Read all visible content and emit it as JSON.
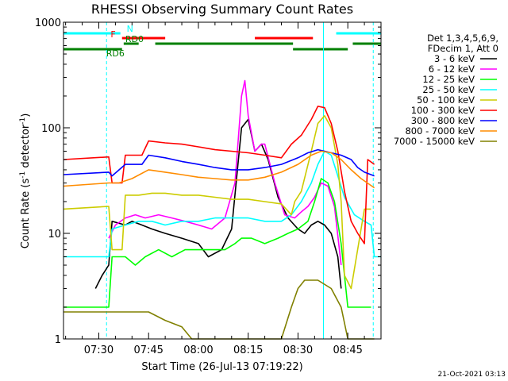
{
  "title": "RHESSI Observing Summary Count Rates",
  "footer_date": "21-Oct-2021 03:13",
  "chart_data": {
    "type": "line",
    "title": "RHESSI Observing Summary Count Rates",
    "xlabel": "Start Time (26-Jul-13 07:19:22)",
    "ylabel": "Count Rate (s^-1 detector^-1)",
    "ylabel_parts": [
      "Count Rate (s",
      "-1",
      " detector",
      "-1",
      ")"
    ],
    "xscale": "linear",
    "yscale": "log",
    "x_unit": "minutes",
    "xlim": [
      "07:19:22",
      "08:55:00"
    ],
    "ylim": [
      1,
      1000
    ],
    "xticks": [
      "07:30",
      "07:45",
      "08:00",
      "08:15",
      "08:30",
      "08:45"
    ],
    "yticks": [
      {
        "value": 1,
        "label": "1"
      },
      {
        "value": 10,
        "label": "10"
      },
      {
        "value": 100,
        "label": "100"
      },
      {
        "value": 1000,
        "label": "1000"
      }
    ],
    "grid": false,
    "legend_position": "right",
    "legend_header": [
      "Det 1,3,4,5,6,9,",
      "FDecim 1, Att 0"
    ],
    "flags": [
      {
        "label": "N",
        "color": "#00ffff",
        "segments": [
          [
            "07:19:22",
            "07:36:30"
          ],
          [
            "08:41:30",
            "08:55:00"
          ]
        ]
      },
      {
        "label": "F",
        "color": "#ff0000",
        "segments": [
          [
            "07:37:00",
            "07:50:00"
          ],
          [
            "08:17:00",
            "08:34:30"
          ]
        ]
      },
      {
        "label": "RD0",
        "color": "#008000",
        "segments": [
          [
            "07:37:30",
            "07:42:00"
          ],
          [
            "07:47:00",
            "08:28:30"
          ],
          [
            "08:46:30",
            "08:55:00"
          ]
        ]
      },
      {
        "label": "RD6",
        "color": "#008000",
        "segments": [
          [
            "07:19:22",
            "07:37:00"
          ],
          [
            "08:28:30",
            "08:45:00"
          ]
        ]
      }
    ],
    "vlines": [
      {
        "x": "07:32:20",
        "color": "#00ffff",
        "style": "dashed"
      },
      {
        "x": "08:37:40",
        "color": "#00ffff",
        "style": "solid"
      },
      {
        "x": "08:52:40",
        "color": "#00ffff",
        "style": "dashed"
      }
    ],
    "series": [
      {
        "name": "3 - 6 keV",
        "color": "#000000",
        "points": [
          [
            "07:29:00",
            3
          ],
          [
            "07:31:00",
            4
          ],
          [
            "07:33:00",
            5
          ],
          [
            "07:34:00",
            13
          ],
          [
            "07:38:00",
            12
          ],
          [
            "07:40:00",
            13
          ],
          [
            "07:43:00",
            12
          ],
          [
            "07:46:00",
            11
          ],
          [
            "07:50:00",
            10
          ],
          [
            "07:55:00",
            9
          ],
          [
            "08:00:00",
            8
          ],
          [
            "08:03:00",
            6
          ],
          [
            "08:07:00",
            7
          ],
          [
            "08:10:00",
            11
          ],
          [
            "08:13:00",
            100
          ],
          [
            "08:15:00",
            120
          ],
          [
            "08:17:00",
            60
          ],
          [
            "08:19:00",
            70
          ],
          [
            "08:21:00",
            50
          ],
          [
            "08:24:00",
            22
          ],
          [
            "08:27:00",
            14
          ],
          [
            "08:30:00",
            11
          ],
          [
            "08:32:00",
            10
          ],
          [
            "08:34:00",
            12
          ],
          [
            "08:36:00",
            13
          ],
          [
            "08:38:00",
            12
          ],
          [
            "08:40:00",
            10
          ],
          [
            "08:42:00",
            6
          ],
          [
            "08:43:00",
            3
          ]
        ]
      },
      {
        "name": "6 - 12 keV",
        "color": "#ff00ff",
        "points": [
          [
            "07:33:00",
            9
          ],
          [
            "07:35:00",
            12
          ],
          [
            "07:38:00",
            14
          ],
          [
            "07:41:00",
            15
          ],
          [
            "07:44:00",
            14
          ],
          [
            "07:48:00",
            15
          ],
          [
            "07:52:00",
            14
          ],
          [
            "07:56:00",
            13
          ],
          [
            "08:00:00",
            12
          ],
          [
            "08:04:00",
            11
          ],
          [
            "08:08:00",
            14
          ],
          [
            "08:11:00",
            30
          ],
          [
            "08:13:00",
            200
          ],
          [
            "08:14:00",
            280
          ],
          [
            "08:15:00",
            130
          ],
          [
            "08:17:00",
            60
          ],
          [
            "08:19:00",
            70
          ],
          [
            "08:20:00",
            70
          ],
          [
            "08:23:00",
            30
          ],
          [
            "08:26:00",
            15
          ],
          [
            "08:29:00",
            14
          ],
          [
            "08:31:00",
            16
          ],
          [
            "08:33:00",
            18
          ],
          [
            "08:35:00",
            22
          ],
          [
            "08:37:00",
            30
          ],
          [
            "08:39:00",
            28
          ],
          [
            "08:41:00",
            18
          ],
          [
            "08:43:00",
            5
          ]
        ]
      },
      {
        "name": "12 - 25 keV",
        "color": "#00ff00",
        "points": [
          [
            "07:19:22",
            2
          ],
          [
            "07:33:00",
            2
          ],
          [
            "07:34:00",
            6
          ],
          [
            "07:38:00",
            6
          ],
          [
            "07:41:00",
            5
          ],
          [
            "07:44:00",
            6
          ],
          [
            "07:48:00",
            7
          ],
          [
            "07:52:00",
            6
          ],
          [
            "07:56:00",
            7
          ],
          [
            "08:00:00",
            7
          ],
          [
            "08:04:00",
            7
          ],
          [
            "08:08:00",
            7
          ],
          [
            "08:11:00",
            8
          ],
          [
            "08:13:00",
            9
          ],
          [
            "08:16:00",
            9
          ],
          [
            "08:20:00",
            8
          ],
          [
            "08:24:00",
            9
          ],
          [
            "08:27:00",
            10
          ],
          [
            "08:30:00",
            11
          ],
          [
            "08:33:00",
            13
          ],
          [
            "08:35:00",
            20
          ],
          [
            "08:37:00",
            33
          ],
          [
            "08:39:00",
            30
          ],
          [
            "08:41:00",
            20
          ],
          [
            "08:43:00",
            8
          ],
          [
            "08:45:00",
            2
          ],
          [
            "08:52:00",
            2
          ]
        ]
      },
      {
        "name": "25 - 50 keV",
        "color": "#00ffff",
        "points": [
          [
            "07:19:22",
            6
          ],
          [
            "07:33:00",
            6
          ],
          [
            "07:34:00",
            11
          ],
          [
            "07:38:00",
            12
          ],
          [
            "07:42:00",
            13
          ],
          [
            "07:46:00",
            13
          ],
          [
            "07:50:00",
            12
          ],
          [
            "07:55:00",
            13
          ],
          [
            "08:00:00",
            13
          ],
          [
            "08:05:00",
            14
          ],
          [
            "08:10:00",
            14
          ],
          [
            "08:15:00",
            14
          ],
          [
            "08:20:00",
            13
          ],
          [
            "08:25:00",
            13
          ],
          [
            "08:28:00",
            15
          ],
          [
            "08:31:00",
            20
          ],
          [
            "08:34:00",
            30
          ],
          [
            "08:36:00",
            45
          ],
          [
            "08:38:00",
            60
          ],
          [
            "08:40:00",
            55
          ],
          [
            "08:42:00",
            35
          ],
          [
            "08:44:00",
            22
          ],
          [
            "08:47:00",
            15
          ],
          [
            "08:50:00",
            13
          ],
          [
            "08:52:00",
            12
          ],
          [
            "08:53:00",
            6
          ],
          [
            "08:55:00",
            6
          ]
        ]
      },
      {
        "name": "50 - 100 keV",
        "color": "#cccc00",
        "points": [
          [
            "07:19:22",
            17
          ],
          [
            "07:33:00",
            18
          ],
          [
            "07:34:00",
            7
          ],
          [
            "07:37:00",
            7
          ],
          [
            "07:38:00",
            23
          ],
          [
            "07:42:00",
            23
          ],
          [
            "07:46:00",
            24
          ],
          [
            "07:50:00",
            24
          ],
          [
            "07:55:00",
            23
          ],
          [
            "08:00:00",
            23
          ],
          [
            "08:05:00",
            22
          ],
          [
            "08:10:00",
            21
          ],
          [
            "08:15:00",
            21
          ],
          [
            "08:20:00",
            20
          ],
          [
            "08:25:00",
            19
          ],
          [
            "08:28:00",
            15
          ],
          [
            "08:29:00",
            20
          ],
          [
            "08:31:00",
            25
          ],
          [
            "08:34:00",
            60
          ],
          [
            "08:36:00",
            110
          ],
          [
            "08:38:00",
            130
          ],
          [
            "08:40:00",
            100
          ],
          [
            "08:42:00",
            45
          ],
          [
            "08:43:00",
            20
          ],
          [
            "08:44:00",
            4
          ],
          [
            "08:46:00",
            3
          ],
          [
            "08:50:00",
            17
          ],
          [
            "08:52:00",
            17
          ]
        ]
      },
      {
        "name": "100 - 300 keV",
        "color": "#ff0000",
        "points": [
          [
            "07:19:22",
            50
          ],
          [
            "07:33:00",
            53
          ],
          [
            "07:34:00",
            30
          ],
          [
            "07:37:00",
            30
          ],
          [
            "07:38:00",
            55
          ],
          [
            "07:43:00",
            55
          ],
          [
            "07:45:00",
            75
          ],
          [
            "07:50:00",
            72
          ],
          [
            "07:55:00",
            70
          ],
          [
            "08:00:00",
            66
          ],
          [
            "08:05:00",
            62
          ],
          [
            "08:10:00",
            60
          ],
          [
            "08:15:00",
            58
          ],
          [
            "08:20:00",
            55
          ],
          [
            "08:25:00",
            52
          ],
          [
            "08:28:00",
            70
          ],
          [
            "08:31:00",
            85
          ],
          [
            "08:34:00",
            120
          ],
          [
            "08:36:00",
            160
          ],
          [
            "08:38:00",
            155
          ],
          [
            "08:40:00",
            110
          ],
          [
            "08:42:00",
            60
          ],
          [
            "08:44:00",
            25
          ],
          [
            "08:46:00",
            13
          ],
          [
            "08:48:00",
            10
          ],
          [
            "08:50:00",
            8
          ],
          [
            "08:51:00",
            50
          ],
          [
            "08:53:00",
            45
          ]
        ]
      },
      {
        "name": "300 - 800 keV",
        "color": "#0000ff",
        "points": [
          [
            "07:19:22",
            36
          ],
          [
            "07:33:00",
            38
          ],
          [
            "07:34:00",
            35
          ],
          [
            "07:38:00",
            45
          ],
          [
            "07:43:00",
            45
          ],
          [
            "07:45:00",
            55
          ],
          [
            "07:50:00",
            52
          ],
          [
            "07:55:00",
            48
          ],
          [
            "08:00:00",
            45
          ],
          [
            "08:05:00",
            42
          ],
          [
            "08:10:00",
            40
          ],
          [
            "08:15:00",
            40
          ],
          [
            "08:20:00",
            42
          ],
          [
            "08:25:00",
            45
          ],
          [
            "08:30:00",
            52
          ],
          [
            "08:33:00",
            58
          ],
          [
            "08:36:00",
            62
          ],
          [
            "08:38:00",
            60
          ],
          [
            "08:40:00",
            58
          ],
          [
            "08:43:00",
            55
          ],
          [
            "08:46:00",
            50
          ],
          [
            "08:48:00",
            42
          ],
          [
            "08:50:00",
            38
          ],
          [
            "08:53:00",
            35
          ]
        ]
      },
      {
        "name": "800 - 7000 keV",
        "color": "#ff8c00",
        "points": [
          [
            "07:19:22",
            28
          ],
          [
            "07:33:00",
            30
          ],
          [
            "07:36:00",
            30
          ],
          [
            "07:40:00",
            33
          ],
          [
            "07:45:00",
            40
          ],
          [
            "07:50:00",
            38
          ],
          [
            "07:55:00",
            36
          ],
          [
            "08:00:00",
            34
          ],
          [
            "08:05:00",
            33
          ],
          [
            "08:10:00",
            32
          ],
          [
            "08:15:00",
            32
          ],
          [
            "08:20:00",
            34
          ],
          [
            "08:25:00",
            38
          ],
          [
            "08:30:00",
            45
          ],
          [
            "08:34:00",
            55
          ],
          [
            "08:37:00",
            60
          ],
          [
            "08:40:00",
            58
          ],
          [
            "08:43:00",
            50
          ],
          [
            "08:46:00",
            40
          ],
          [
            "08:49:00",
            33
          ],
          [
            "08:53:00",
            27
          ]
        ]
      },
      {
        "name": "7000 - 15000 keV",
        "color": "#808000",
        "points": [
          [
            "07:19:22",
            1.8
          ],
          [
            "07:45:00",
            1.8
          ],
          [
            "07:50:00",
            1.5
          ],
          [
            "07:55:00",
            1.3
          ],
          [
            "07:58:00",
            1.0
          ],
          [
            "08:25:00",
            1.0
          ],
          [
            "08:28:00",
            2.0
          ],
          [
            "08:30:00",
            3.0
          ],
          [
            "08:32:00",
            3.6
          ],
          [
            "08:36:00",
            3.6
          ],
          [
            "08:40:00",
            3.0
          ],
          [
            "08:43:00",
            2.0
          ],
          [
            "08:45:00",
            1.0
          ],
          [
            "08:53:00",
            1.0
          ]
        ]
      }
    ]
  }
}
